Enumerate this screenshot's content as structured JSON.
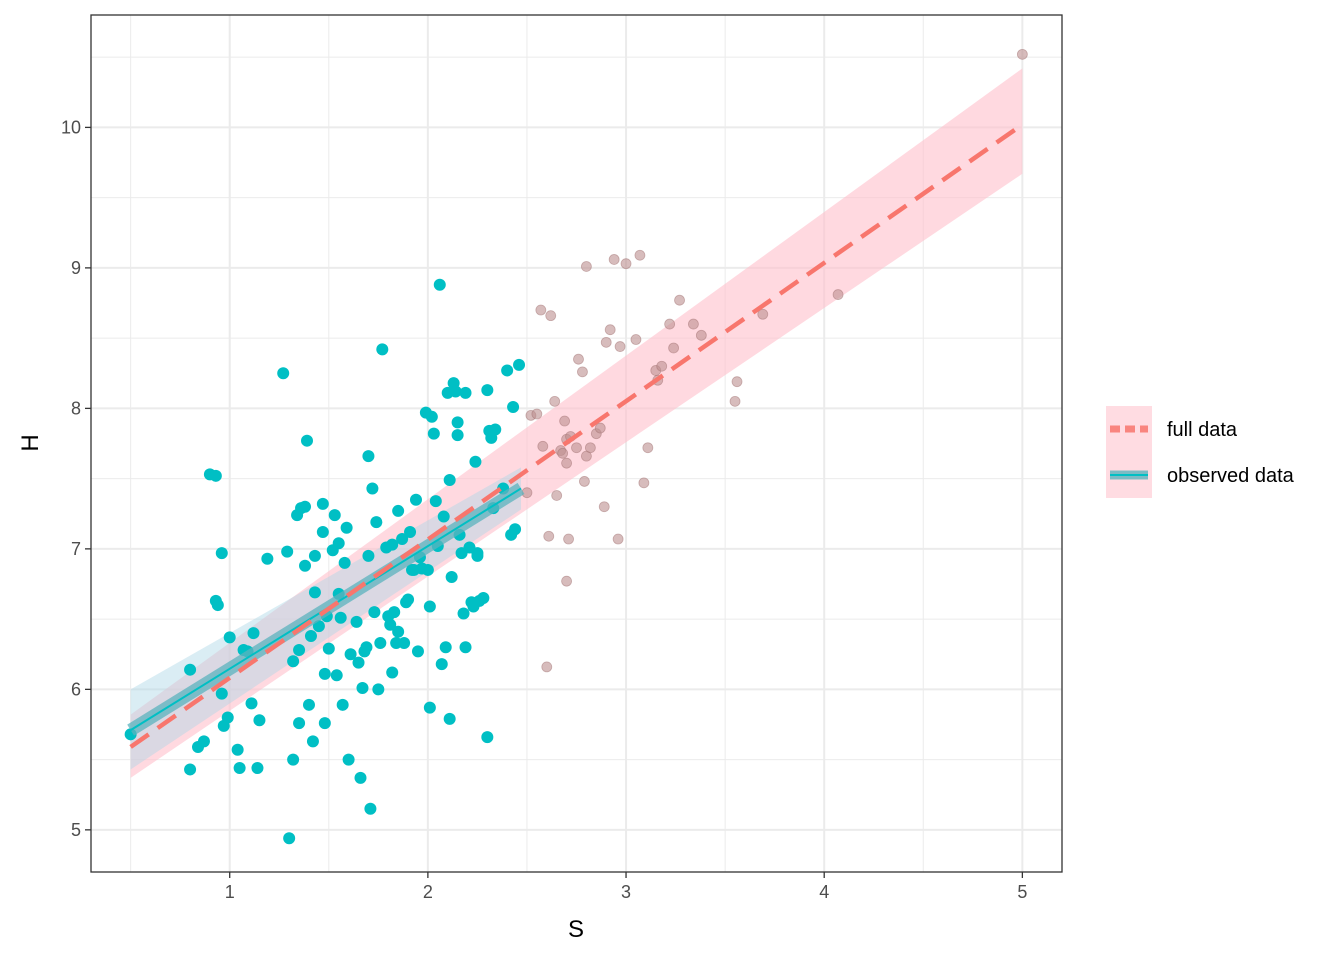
{
  "chart_data": {
    "type": "scatter",
    "xlabel": "S",
    "ylabel": "H",
    "xlim": [
      0.3,
      5.2
    ],
    "ylim": [
      4.7,
      10.8
    ],
    "x_ticks": [
      1,
      2,
      3,
      4,
      5
    ],
    "y_ticks": [
      5,
      6,
      7,
      8,
      9,
      10
    ],
    "grid": true,
    "legend_position": "right",
    "colors": {
      "observed": "#00bfc4",
      "missing": "#bc8f8f",
      "full_line": "#f8766d",
      "full_band": "#ffc0cb",
      "observed_line": "#5bb3bd",
      "observed_band": "#add8e6"
    },
    "series": [
      {
        "name": "observed data",
        "values": [
          [
            0.5,
            5.68
          ],
          [
            0.8,
            6.14
          ],
          [
            0.8,
            5.43
          ],
          [
            0.84,
            5.59
          ],
          [
            0.87,
            5.63
          ],
          [
            0.9,
            7.53
          ],
          [
            0.93,
            7.52
          ],
          [
            0.93,
            6.63
          ],
          [
            0.94,
            6.6
          ],
          [
            0.96,
            6.97
          ],
          [
            0.96,
            5.97
          ],
          [
            0.97,
            5.74
          ],
          [
            0.99,
            5.8
          ],
          [
            1.0,
            6.37
          ],
          [
            1.04,
            5.57
          ],
          [
            1.05,
            5.44
          ],
          [
            1.07,
            6.28
          ],
          [
            1.09,
            6.27
          ],
          [
            1.11,
            5.9
          ],
          [
            1.12,
            6.4
          ],
          [
            1.14,
            5.44
          ],
          [
            1.15,
            5.78
          ],
          [
            1.19,
            6.93
          ],
          [
            1.27,
            8.25
          ],
          [
            1.29,
            6.98
          ],
          [
            1.3,
            4.94
          ],
          [
            1.32,
            5.5
          ],
          [
            1.32,
            6.2
          ],
          [
            1.34,
            7.24
          ],
          [
            1.35,
            5.76
          ],
          [
            1.35,
            6.28
          ],
          [
            1.36,
            7.29
          ],
          [
            1.38,
            7.3
          ],
          [
            1.38,
            6.88
          ],
          [
            1.39,
            7.77
          ],
          [
            1.4,
            5.89
          ],
          [
            1.41,
            6.38
          ],
          [
            1.42,
            5.63
          ],
          [
            1.43,
            6.69
          ],
          [
            1.43,
            6.95
          ],
          [
            1.45,
            6.45
          ],
          [
            1.47,
            7.32
          ],
          [
            1.47,
            7.12
          ],
          [
            1.48,
            5.76
          ],
          [
            1.48,
            6.11
          ],
          [
            1.49,
            6.52
          ],
          [
            1.5,
            6.29
          ],
          [
            1.52,
            6.99
          ],
          [
            1.53,
            7.24
          ],
          [
            1.54,
            6.1
          ],
          [
            1.55,
            7.04
          ],
          [
            1.55,
            6.68
          ],
          [
            1.56,
            6.51
          ],
          [
            1.57,
            5.89
          ],
          [
            1.58,
            6.9
          ],
          [
            1.59,
            7.15
          ],
          [
            1.6,
            5.5
          ],
          [
            1.61,
            6.25
          ],
          [
            1.64,
            6.48
          ],
          [
            1.65,
            6.19
          ],
          [
            1.66,
            5.37
          ],
          [
            1.67,
            6.01
          ],
          [
            1.68,
            6.27
          ],
          [
            1.69,
            6.3
          ],
          [
            1.7,
            7.66
          ],
          [
            1.7,
            6.95
          ],
          [
            1.71,
            5.15
          ],
          [
            1.72,
            7.43
          ],
          [
            1.73,
            6.55
          ],
          [
            1.74,
            7.19
          ],
          [
            1.75,
            6.0
          ],
          [
            1.76,
            6.33
          ],
          [
            1.77,
            8.42
          ],
          [
            1.79,
            7.01
          ],
          [
            1.8,
            6.52
          ],
          [
            1.81,
            6.46
          ],
          [
            1.82,
            7.03
          ],
          [
            1.82,
            6.12
          ],
          [
            1.83,
            6.55
          ],
          [
            1.84,
            6.33
          ],
          [
            1.85,
            7.27
          ],
          [
            1.85,
            6.41
          ],
          [
            1.87,
            7.07
          ],
          [
            1.88,
            6.33
          ],
          [
            1.89,
            6.62
          ],
          [
            1.9,
            6.64
          ],
          [
            1.91,
            7.12
          ],
          [
            1.92,
            6.85
          ],
          [
            1.93,
            6.85
          ],
          [
            1.94,
            7.35
          ],
          [
            1.95,
            6.27
          ],
          [
            1.96,
            6.94
          ],
          [
            1.97,
            6.86
          ],
          [
            1.99,
            7.97
          ],
          [
            2.0,
            6.85
          ],
          [
            2.01,
            6.59
          ],
          [
            2.01,
            5.87
          ],
          [
            2.02,
            7.94
          ],
          [
            2.03,
            7.82
          ],
          [
            2.04,
            7.34
          ],
          [
            2.05,
            7.02
          ],
          [
            2.06,
            8.88
          ],
          [
            2.07,
            6.18
          ],
          [
            2.08,
            7.23
          ],
          [
            2.09,
            6.3
          ],
          [
            2.1,
            8.11
          ],
          [
            2.11,
            7.49
          ],
          [
            2.11,
            5.79
          ],
          [
            2.12,
            6.8
          ],
          [
            2.13,
            8.18
          ],
          [
            2.14,
            8.12
          ],
          [
            2.15,
            7.9
          ],
          [
            2.15,
            7.81
          ],
          [
            2.16,
            7.1
          ],
          [
            2.17,
            6.97
          ],
          [
            2.18,
            6.54
          ],
          [
            2.19,
            8.11
          ],
          [
            2.19,
            6.3
          ],
          [
            2.21,
            7.01
          ],
          [
            2.22,
            6.62
          ],
          [
            2.23,
            6.59
          ],
          [
            2.24,
            7.62
          ],
          [
            2.25,
            6.95
          ],
          [
            2.25,
            6.97
          ],
          [
            2.26,
            6.63
          ],
          [
            2.28,
            6.65
          ],
          [
            2.3,
            8.13
          ],
          [
            2.3,
            5.66
          ],
          [
            2.31,
            7.84
          ],
          [
            2.32,
            7.79
          ],
          [
            2.33,
            7.29
          ],
          [
            2.34,
            7.85
          ],
          [
            2.38,
            7.43
          ],
          [
            2.4,
            8.27
          ],
          [
            2.42,
            7.1
          ],
          [
            2.43,
            8.01
          ],
          [
            2.44,
            7.14
          ],
          [
            2.46,
            8.31
          ]
        ]
      },
      {
        "name": "",
        "values": [
          [
            2.5,
            7.4
          ],
          [
            2.52,
            7.95
          ],
          [
            2.55,
            7.96
          ],
          [
            2.57,
            8.7
          ],
          [
            2.58,
            7.73
          ],
          [
            2.6,
            6.16
          ],
          [
            2.61,
            7.09
          ],
          [
            2.62,
            8.66
          ],
          [
            2.64,
            8.05
          ],
          [
            2.65,
            7.38
          ],
          [
            2.67,
            7.7
          ],
          [
            2.68,
            7.68
          ],
          [
            2.69,
            7.91
          ],
          [
            2.7,
            7.61
          ],
          [
            2.7,
            7.78
          ],
          [
            2.7,
            6.77
          ],
          [
            2.71,
            7.07
          ],
          [
            2.72,
            7.8
          ],
          [
            2.75,
            7.72
          ],
          [
            2.76,
            8.35
          ],
          [
            2.78,
            8.26
          ],
          [
            2.79,
            7.48
          ],
          [
            2.8,
            9.01
          ],
          [
            2.8,
            7.66
          ],
          [
            2.82,
            7.72
          ],
          [
            2.85,
            7.82
          ],
          [
            2.87,
            7.86
          ],
          [
            2.89,
            7.3
          ],
          [
            2.9,
            8.47
          ],
          [
            2.92,
            8.56
          ],
          [
            2.94,
            9.06
          ],
          [
            2.96,
            7.07
          ],
          [
            2.97,
            8.44
          ],
          [
            3.0,
            9.03
          ],
          [
            3.05,
            8.49
          ],
          [
            3.07,
            9.09
          ],
          [
            3.09,
            7.47
          ],
          [
            3.11,
            7.72
          ],
          [
            3.15,
            8.27
          ],
          [
            3.16,
            8.2
          ],
          [
            3.18,
            8.3
          ],
          [
            3.22,
            8.6
          ],
          [
            3.24,
            8.43
          ],
          [
            3.27,
            8.77
          ],
          [
            3.34,
            8.6
          ],
          [
            3.38,
            8.52
          ],
          [
            3.55,
            8.05
          ],
          [
            3.56,
            8.19
          ],
          [
            3.69,
            8.67
          ],
          [
            4.07,
            8.81
          ],
          [
            5.0,
            10.52
          ]
        ]
      }
    ],
    "fits": [
      {
        "name": "full data",
        "x_range": [
          0.5,
          5.0
        ],
        "line": [
          5.59,
          10.02
        ],
        "band_upper": [
          5.82,
          10.42
        ],
        "band_lower": [
          5.37,
          9.67
        ]
      },
      {
        "name": "observed data",
        "x_range": [
          0.5,
          2.47
        ],
        "line": [
          5.71,
          7.43
        ],
        "band_upper": [
          6.0,
          7.58
        ],
        "band_lower": [
          5.43,
          7.28
        ]
      }
    ],
    "legend": [
      "full data",
      "observed data"
    ]
  }
}
